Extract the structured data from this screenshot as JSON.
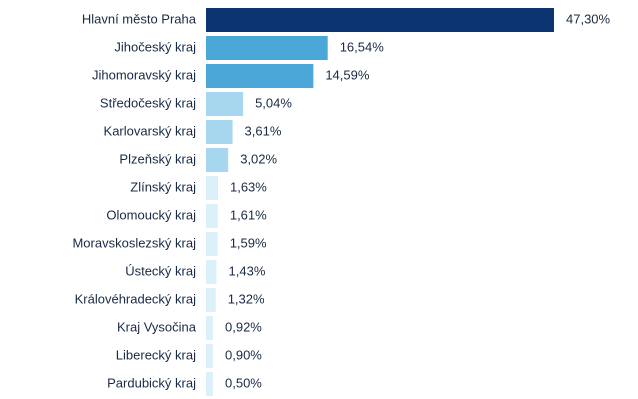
{
  "chart_data": {
    "type": "bar",
    "orientation": "horizontal",
    "title": "",
    "xlabel": "",
    "ylabel": "",
    "xlim": [
      0,
      47.3
    ],
    "grid": false,
    "legend": "none",
    "categories": [
      "Hlavní město Praha",
      "Jihočeský kraj",
      "Jihomoravský kraj",
      "Středočeský kraj",
      "Karlovarský kraj",
      "Plzeňský kraj",
      "Zlínský kraj",
      "Olomoucký kraj",
      "Moravskoslezský kraj",
      "Ústecký kraj",
      "Královéhradecký kraj",
      "Kraj Vysočina",
      "Liberecký kraj",
      "Pardubický kraj"
    ],
    "values": [
      47.3,
      16.54,
      14.59,
      5.04,
      3.61,
      3.02,
      1.63,
      1.61,
      1.59,
      1.43,
      1.32,
      0.92,
      0.9,
      0.5
    ],
    "value_labels": [
      "47,30%",
      "16,54%",
      "14,59%",
      "5,04%",
      "3,61%",
      "3,02%",
      "1,63%",
      "1,61%",
      "1,59%",
      "1,43%",
      "1,32%",
      "0,92%",
      "0,90%",
      "0,50%"
    ],
    "colors": {
      "top": "#0b3470",
      "high": "#4aa7d8",
      "mid": "#a6d7ef",
      "low": "#dcf0fa"
    }
  }
}
